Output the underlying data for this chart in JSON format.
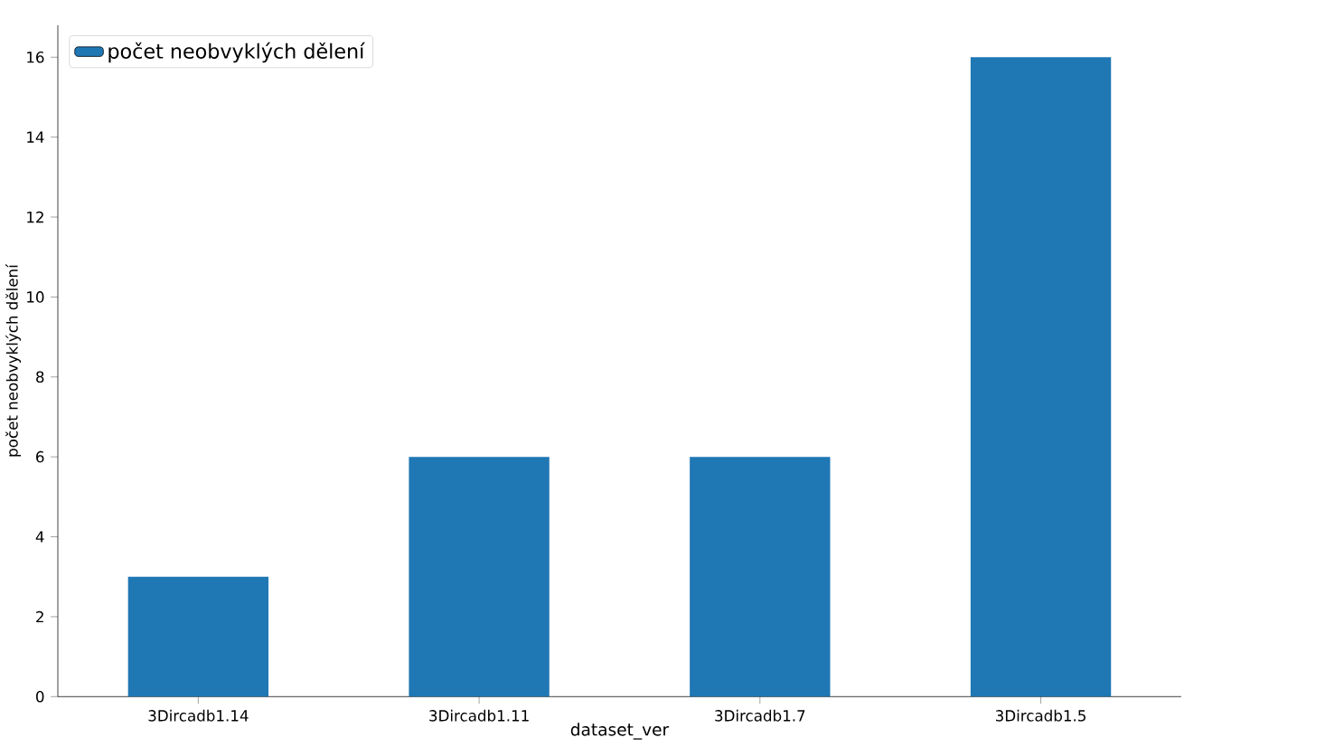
{
  "chart_data": {
    "type": "bar",
    "xlabel": "dataset_ver",
    "ylabel": "počet neobvyklých dělení",
    "categories": [
      "3Dircadb1.14",
      "3Dircadb1.11",
      "3Dircadb1.7",
      "3Dircadb1.5"
    ],
    "series": [
      {
        "name": "počet neobvyklých dělení",
        "color": "#1f77b4",
        "values": [
          3,
          6,
          6,
          16
        ]
      }
    ],
    "ylim": [
      0,
      16.8
    ],
    "yticks": [
      0,
      2,
      4,
      6,
      8,
      10,
      12,
      14,
      16
    ],
    "legend": "top left",
    "grid": false
  }
}
